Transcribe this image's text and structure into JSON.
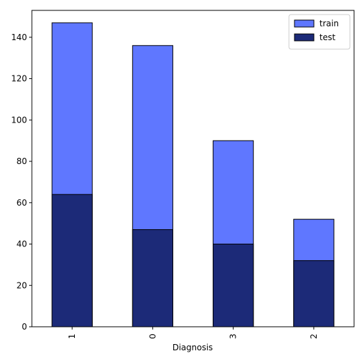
{
  "chart_data": {
    "type": "bar",
    "xlabel": "Diagnosis",
    "categories": [
      "1",
      "0",
      "3",
      "2"
    ],
    "series": [
      {
        "name": "train",
        "color": "#5f77ff",
        "values": [
          147,
          136,
          90,
          52
        ]
      },
      {
        "name": "test",
        "color": "#1c2a78",
        "values": [
          64,
          47,
          40,
          32
        ]
      }
    ],
    "ylim": [
      0,
      153
    ],
    "yticks": [
      0,
      20,
      40,
      60,
      80,
      100,
      120,
      140
    ],
    "legend": "upper right"
  }
}
